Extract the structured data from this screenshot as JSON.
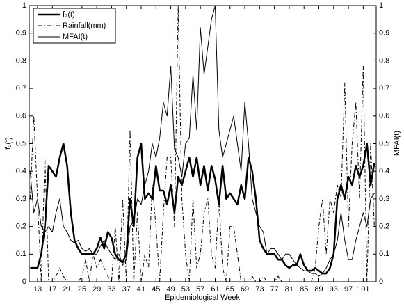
{
  "chart_data": {
    "type": "line",
    "x_label": "Epidemiological Week",
    "y_label": "f₂(t)",
    "y2_label": "MFAI(t)",
    "x": [
      11,
      12,
      13,
      14,
      15,
      16,
      17,
      18,
      19,
      20,
      21,
      22,
      23,
      24,
      25,
      26,
      27,
      28,
      29,
      30,
      31,
      32,
      33,
      34,
      35,
      36,
      37,
      38,
      39,
      40,
      41,
      42,
      43,
      44,
      45,
      46,
      47,
      48,
      49,
      50,
      51,
      52,
      53,
      54,
      55,
      56,
      57,
      58,
      59,
      60,
      61,
      62,
      63,
      64,
      65,
      66,
      67,
      68,
      69,
      70,
      71,
      72,
      73,
      74,
      75,
      76,
      77,
      78,
      79,
      80,
      81,
      82,
      83,
      84,
      85,
      86,
      87,
      88,
      89,
      90,
      91,
      92,
      93,
      94,
      95,
      96,
      97,
      98,
      99,
      100,
      101,
      102,
      103,
      104
    ],
    "series": [
      {
        "name": "f₂(t)",
        "color": "#000000",
        "style": "thick",
        "axis": "y",
        "values": [
          0.05,
          0.05,
          0.05,
          0.1,
          0.2,
          0.42,
          0.4,
          0.38,
          0.45,
          0.5,
          0.42,
          0.25,
          0.15,
          0.12,
          0.1,
          0.1,
          0.1,
          0.1,
          0.12,
          0.16,
          0.12,
          0.18,
          0.16,
          0.1,
          0.08,
          0.07,
          0.1,
          0.3,
          0.2,
          0.45,
          0.5,
          0.3,
          0.32,
          0.3,
          0.42,
          0.33,
          0.33,
          0.28,
          0.35,
          0.25,
          0.38,
          0.35,
          0.4,
          0.45,
          0.38,
          0.45,
          0.35,
          0.42,
          0.33,
          0.42,
          0.37,
          0.28,
          0.42,
          0.3,
          0.32,
          0.3,
          0.28,
          0.35,
          0.3,
          0.45,
          0.4,
          0.3,
          0.15,
          0.12,
          0.1,
          0.1,
          0.1,
          0.08,
          0.08,
          0.06,
          0.05,
          0.06,
          0.06,
          0.1,
          0.06,
          0.04,
          0.04,
          0.05,
          0.04,
          0.03,
          0.03,
          0.05,
          0.1,
          0.3,
          0.35,
          0.3,
          0.38,
          0.35,
          0.42,
          0.38,
          0.42,
          0.5,
          0.35,
          0.43
        ]
      },
      {
        "name": "Rainfall(mm)",
        "color": "#000000",
        "style": "dashdot",
        "axis": "y",
        "values": [
          0.3,
          0.6,
          0.3,
          0,
          0.45,
          0,
          0,
          0.02,
          0.05,
          0.02,
          0,
          0,
          0,
          0,
          0.02,
          0.08,
          0,
          0.1,
          0.05,
          0.08,
          0.05,
          0.02,
          0,
          0.2,
          0,
          0.3,
          0,
          0.55,
          0,
          0.25,
          0,
          0.1,
          0.05,
          0.35,
          0.2,
          0,
          0.25,
          0.45,
          0.45,
          0.2,
          1,
          0.3,
          0.1,
          0,
          0.3,
          0.05,
          0.1,
          0.25,
          0.3,
          0.1,
          0.05,
          0.3,
          0.05,
          0,
          0.2,
          0.2,
          0.1,
          0,
          0,
          0,
          0.02,
          0,
          0,
          0.02,
          0,
          0,
          0,
          0.02,
          0,
          0,
          0,
          0,
          0,
          0,
          0,
          0,
          0,
          0.05,
          0.2,
          0.3,
          0.1,
          0.3,
          0.25,
          0.35,
          0.3,
          0.72,
          0.2,
          0.5,
          0.65,
          0.3,
          0.78,
          0,
          0.5,
          0.2
        ]
      },
      {
        "name": "MFAI(t)",
        "color": "#000000",
        "style": "thin",
        "axis": "y2",
        "values": [
          0.4,
          0.25,
          0.3,
          0.2,
          0.18,
          0.2,
          0.18,
          0.25,
          0.3,
          0.2,
          0.18,
          0.15,
          0.14,
          0.15,
          0.12,
          0.11,
          0.12,
          0.1,
          0.1,
          0.13,
          0.15,
          0.12,
          0.1,
          0.08,
          0.1,
          0.06,
          0.08,
          0.2,
          0.22,
          0.3,
          0.28,
          0.35,
          0.4,
          0.5,
          0.45,
          0.52,
          0.65,
          0.6,
          0.78,
          0.48,
          0.45,
          0.38,
          0.5,
          0.52,
          0.75,
          0.55,
          0.92,
          0.75,
          0.85,
          0.95,
          1,
          0.55,
          0.45,
          0.5,
          0.55,
          0.6,
          0.5,
          0.4,
          0.65,
          0.5,
          0.3,
          0.25,
          0.2,
          0.18,
          0.1,
          0.12,
          0.12,
          0.1,
          0.08,
          0.1,
          0.1,
          0.08,
          0.06,
          0.05,
          0.04,
          0.04,
          0.03,
          0.03,
          0.02,
          0.03,
          0.05,
          0.08,
          0.1,
          0.15,
          0.25,
          0.15,
          0.08,
          0.08,
          0.15,
          0.2,
          0.25,
          0.2,
          0.3,
          0.32
        ]
      }
    ],
    "xlim": [
      10.75,
      104.5
    ],
    "xticks": [
      13,
      17,
      21,
      25,
      29,
      33,
      37,
      41,
      45,
      49,
      53,
      57,
      61,
      65,
      69,
      73,
      77,
      81,
      85,
      89,
      93,
      97,
      101
    ],
    "ylim": [
      0,
      1
    ],
    "yticks": [
      0,
      0.1,
      0.2,
      0.3,
      0.4,
      0.5,
      0.6,
      0.7,
      0.8,
      0.9,
      1
    ],
    "y2lim": [
      0,
      1
    ],
    "y2ticks": [
      0,
      0.1,
      0.2,
      0.3,
      0.4,
      0.5,
      0.6,
      0.7,
      0.8,
      0.9,
      1
    ],
    "legend": "top-left"
  }
}
